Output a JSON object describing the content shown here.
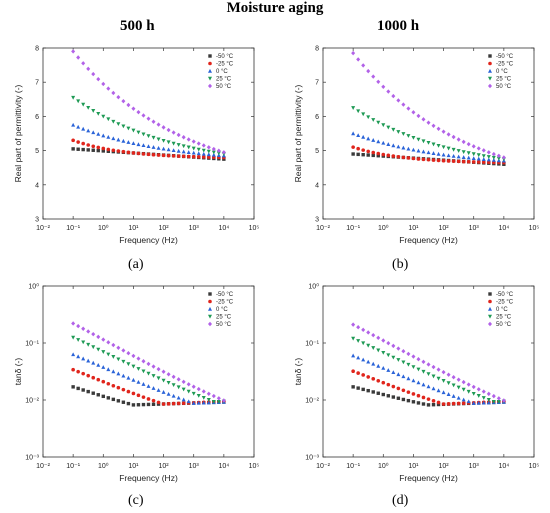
{
  "figure": {
    "title": "Moisture aging",
    "column_titles": [
      "500 h",
      "1000 h"
    ],
    "captions": [
      "(a)",
      "(b)",
      "(c)",
      "(d)"
    ]
  },
  "colors": {
    "-50 °C": "#3a3a3a",
    "-25 °C": "#e0251c",
    "0 °C": "#2a63d8",
    "25 °C": "#1f9a55",
    "50 °C": "#b262e8"
  },
  "chart_data": [
    {
      "panel": "(a)",
      "type": "scatter",
      "xlabel": "Frequency (Hz)",
      "ylabel": "Real part of permittivity (-)",
      "xscale": "log",
      "xlim": [
        0.01,
        100000
      ],
      "yscale": "linear",
      "ylim": [
        3,
        8
      ],
      "x_ticks": [
        "10⁻²",
        "10⁻¹",
        "10⁰",
        "10¹",
        "10²",
        "10³",
        "10⁴",
        "10⁵"
      ],
      "y_ticks": [
        "3",
        "4",
        "5",
        "6",
        "7",
        "8"
      ],
      "x_range_points": [
        0.1,
        10000
      ],
      "points_per_series": 31,
      "legend_position": "top-right",
      "series": [
        {
          "name": "-50 °C",
          "marker": "square",
          "y_at_0.1Hz": 5.05,
          "y_at_10kHz": 4.75,
          "decay": 0.0
        },
        {
          "name": "-25 °C",
          "marker": "circle",
          "y_at_0.1Hz": 5.3,
          "y_at_10kHz": 4.8,
          "decay": 0.3
        },
        {
          "name": "0 °C",
          "marker": "triangle-up",
          "y_at_0.1Hz": 5.75,
          "y_at_10kHz": 4.85,
          "decay": 0.55
        },
        {
          "name": "25 °C",
          "marker": "triangle-down",
          "y_at_0.1Hz": 6.55,
          "y_at_10kHz": 4.9,
          "decay": 0.6
        },
        {
          "name": "50 °C",
          "marker": "diamond",
          "y_at_0.1Hz": 7.9,
          "y_at_10kHz": 4.95,
          "decay": 0.65
        }
      ]
    },
    {
      "panel": "(b)",
      "type": "scatter",
      "xlabel": "Frequency (Hz)",
      "ylabel": "Real part of permittivity (-)",
      "xscale": "log",
      "xlim": [
        0.01,
        100000
      ],
      "yscale": "linear",
      "ylim": [
        3,
        8
      ],
      "x_ticks": [
        "10⁻²",
        "10⁻¹",
        "10⁰",
        "10¹",
        "10²",
        "10³",
        "10⁴",
        "10⁵"
      ],
      "y_ticks": [
        "3",
        "4",
        "5",
        "6",
        "7",
        "8"
      ],
      "x_range_points": [
        0.1,
        10000
      ],
      "points_per_series": 31,
      "legend_position": "top-right",
      "series": [
        {
          "name": "-50 °C",
          "marker": "square",
          "y_at_0.1Hz": 4.9,
          "y_at_10kHz": 4.6,
          "decay": 0.0
        },
        {
          "name": "-25 °C",
          "marker": "circle",
          "y_at_0.1Hz": 5.1,
          "y_at_10kHz": 4.65,
          "decay": 0.3
        },
        {
          "name": "0 °C",
          "marker": "triangle-up",
          "y_at_0.1Hz": 5.5,
          "y_at_10kHz": 4.7,
          "decay": 0.55
        },
        {
          "name": "25 °C",
          "marker": "triangle-down",
          "y_at_0.1Hz": 6.25,
          "y_at_10kHz": 4.75,
          "decay": 0.6
        },
        {
          "name": "50 °C",
          "marker": "diamond",
          "y_at_0.1Hz": 7.85,
          "y_at_10kHz": 4.8,
          "decay": 0.65
        }
      ]
    },
    {
      "panel": "(c)",
      "type": "scatter",
      "xlabel": "Frequency (Hz)",
      "ylabel": "tanδ (-)",
      "xscale": "log",
      "xlim": [
        0.01,
        100000
      ],
      "yscale": "log",
      "ylim": [
        0.001,
        1
      ],
      "x_ticks": [
        "10⁻²",
        "10⁻¹",
        "10⁰",
        "10¹",
        "10²",
        "10³",
        "10⁴",
        "10⁵"
      ],
      "y_ticks": [
        "10⁻³",
        "10⁻²",
        "10⁻¹",
        "10⁰"
      ],
      "x_range_points": [
        0.1,
        10000
      ],
      "points_per_series": 31,
      "legend_position": "top-right",
      "series": [
        {
          "name": "-50 °C",
          "marker": "square",
          "y_at_0.1Hz": 0.017,
          "y_min": 0.0082,
          "x_at_min": 10,
          "y_at_10kHz": 0.0092
        },
        {
          "name": "-25 °C",
          "marker": "circle",
          "y_at_0.1Hz": 0.034,
          "y_min": 0.0085,
          "x_at_min": 100,
          "y_at_10kHz": 0.0094
        },
        {
          "name": "0 °C",
          "marker": "triangle-up",
          "y_at_0.1Hz": 0.063,
          "y_min": 0.0088,
          "x_at_min": 1000,
          "y_at_10kHz": 0.0092
        },
        {
          "name": "25 °C",
          "marker": "triangle-down",
          "y_at_0.1Hz": 0.125,
          "y_min": 0.0092,
          "x_at_min": 5000,
          "y_at_10kHz": 0.0095
        },
        {
          "name": "50 °C",
          "marker": "diamond",
          "y_at_0.1Hz": 0.22,
          "y_min": 0.0098,
          "x_at_min": 10000,
          "y_at_10kHz": 0.0098
        }
      ]
    },
    {
      "panel": "(d)",
      "type": "scatter",
      "xlabel": "Frequency (Hz)",
      "ylabel": "tanδ (-)",
      "xscale": "log",
      "xlim": [
        0.01,
        100000
      ],
      "yscale": "log",
      "ylim": [
        0.001,
        1
      ],
      "x_ticks": [
        "10⁻²",
        "10⁻¹",
        "10⁰",
        "10¹",
        "10²",
        "10³",
        "10⁴",
        "10⁵"
      ],
      "y_ticks": [
        "10⁻³",
        "10⁻²",
        "10⁻¹",
        "10⁰"
      ],
      "x_range_points": [
        0.1,
        10000
      ],
      "points_per_series": 31,
      "legend_position": "top-right",
      "series": [
        {
          "name": "-50 °C",
          "marker": "square",
          "y_at_0.1Hz": 0.017,
          "y_min": 0.0082,
          "x_at_min": 30,
          "y_at_10kHz": 0.0092
        },
        {
          "name": "-25 °C",
          "marker": "circle",
          "y_at_0.1Hz": 0.032,
          "y_min": 0.0085,
          "x_at_min": 100,
          "y_at_10kHz": 0.0094
        },
        {
          "name": "0 °C",
          "marker": "triangle-up",
          "y_at_0.1Hz": 0.06,
          "y_min": 0.0088,
          "x_at_min": 1000,
          "y_at_10kHz": 0.0092
        },
        {
          "name": "25 °C",
          "marker": "triangle-down",
          "y_at_0.1Hz": 0.12,
          "y_min": 0.0092,
          "x_at_min": 5000,
          "y_at_10kHz": 0.0095
        },
        {
          "name": "50 °C",
          "marker": "diamond",
          "y_at_0.1Hz": 0.21,
          "y_min": 0.0098,
          "x_at_min": 10000,
          "y_at_10kHz": 0.0098
        }
      ]
    }
  ]
}
